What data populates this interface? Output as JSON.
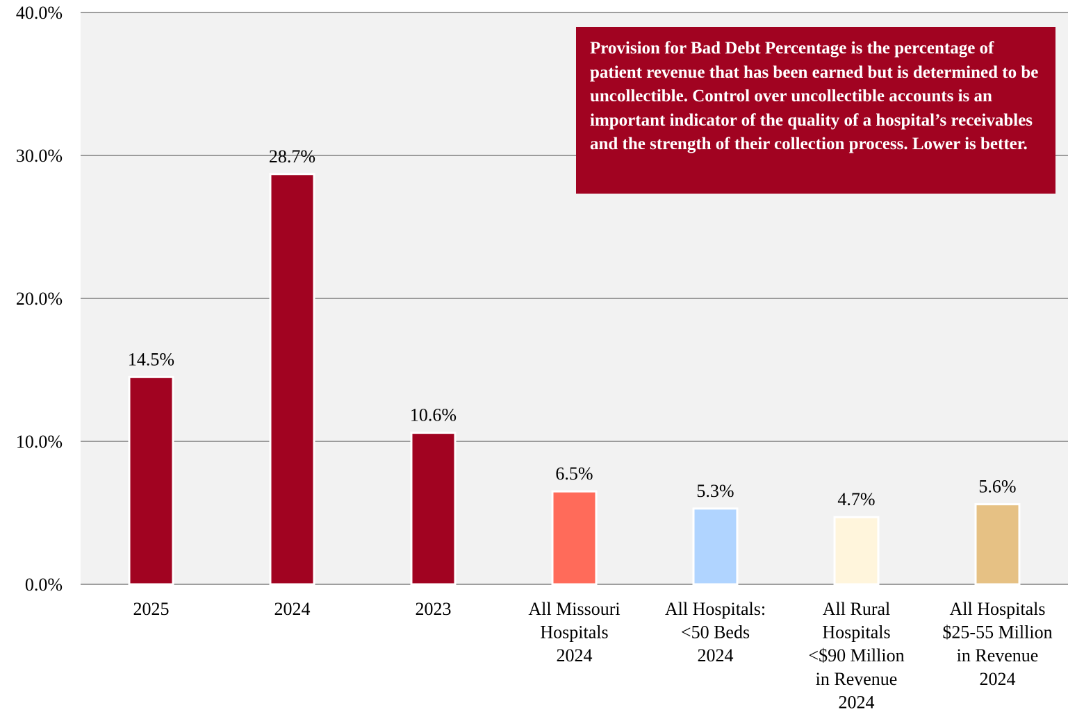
{
  "chart_data": {
    "type": "bar",
    "categories": [
      [
        "2025"
      ],
      [
        "2024"
      ],
      [
        "2023"
      ],
      [
        "All Missouri",
        "Hospitals",
        "2024"
      ],
      [
        "All Hospitals:",
        "<50 Beds",
        "2024"
      ],
      [
        "All Rural",
        "Hospitals",
        "<$90 Million",
        "in Revenue",
        "2024"
      ],
      [
        "All Hospitals",
        "$25-55 Million",
        "in Revenue",
        "2024"
      ]
    ],
    "values": [
      14.5,
      28.7,
      10.6,
      6.5,
      5.3,
      4.7,
      5.6
    ],
    "data_labels": [
      "14.5%",
      "28.7%",
      "10.6%",
      "6.5%",
      "5.3%",
      "4.7%",
      "5.6%"
    ],
    "bar_colors": [
      "#A10321",
      "#A10321",
      "#A10321",
      "#FF6B5A",
      "#B0D4FF",
      "#FFF5DC",
      "#E6C184"
    ],
    "ylim": [
      0,
      40
    ],
    "yticks": [
      0,
      10,
      20,
      30,
      40
    ],
    "ytick_labels": [
      "0.0%",
      "10.0%",
      "20.0%",
      "30.0%",
      "40.0%"
    ],
    "grid": true,
    "plot_background": "#F2F2F2",
    "gridline_color": "#808080"
  },
  "note": {
    "text": "Provision for Bad Debt Percentage is the percentage of patient revenue that has been earned but is determined to be uncollectible. Control over uncollectible accounts is an important indicator of the quality of a hospital’s receivables and the strength of their collection process. Lower is better.",
    "background": "#A10321",
    "text_color": "#FFFFFF"
  }
}
